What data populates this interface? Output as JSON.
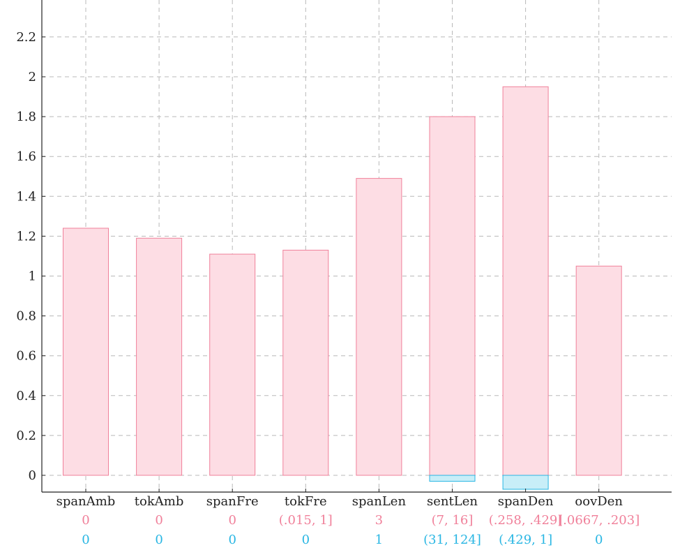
{
  "chart_data": {
    "type": "bar",
    "title": "",
    "xlabel": "",
    "ylabel": "",
    "ylim": [
      -0.08,
      2.38
    ],
    "yticks": [
      0,
      0.2,
      0.4,
      0.6,
      0.8,
      1,
      1.2,
      1.4,
      1.6,
      1.8,
      2,
      2.2
    ],
    "ytick_labels": [
      "0",
      "0.2",
      "0.4",
      "0.6",
      "0.8",
      "1",
      "1.2",
      "1.4",
      "1.6",
      "1.8",
      "2",
      "2.2"
    ],
    "grid": true,
    "grid_style": "dashed",
    "categories": [
      "spanAmb",
      "tokAmb",
      "spanFre",
      "tokFre",
      "spanLen",
      "sentLen",
      "spanDen",
      "oovDen"
    ],
    "series": [
      {
        "color": "#f0809a",
        "fill": "#fddde4",
        "values": [
          1.24,
          1.19,
          1.11,
          1.13,
          1.49,
          1.8,
          1.95,
          1.05
        ],
        "bucket_labels": [
          "0",
          "0",
          "0",
          "(.015, 1]",
          "3",
          "(7, 16]",
          "(.258, .429]",
          "[.0667, .203]"
        ]
      },
      {
        "color": "#29b6e3",
        "fill": "#c8eef8",
        "values": [
          0,
          0,
          0,
          0,
          0,
          -0.03,
          -0.07,
          0
        ],
        "bucket_labels": [
          "0",
          "0",
          "0",
          "0",
          "1",
          "(31, 124]",
          "(.429, 1]",
          "0"
        ]
      }
    ]
  }
}
